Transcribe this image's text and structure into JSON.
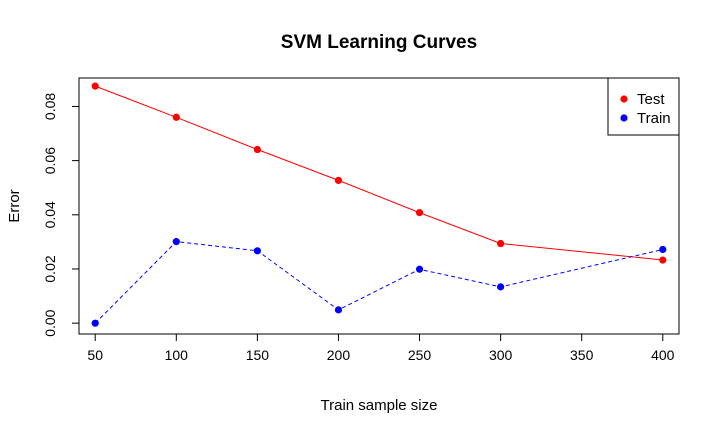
{
  "chart_data": {
    "type": "line",
    "title": "SVM Learning Curves",
    "xlabel": "Train sample size",
    "ylabel": "Error",
    "xlim": [
      40,
      410
    ],
    "ylim": [
      -0.004,
      0.0905
    ],
    "xticks": [
      50,
      100,
      150,
      200,
      250,
      300,
      350,
      400
    ],
    "yticks": [
      0.0,
      0.02,
      0.04,
      0.06,
      0.08
    ],
    "ytick_labels": [
      "0.00",
      "0.02",
      "0.04",
      "0.06",
      "0.08"
    ],
    "x": [
      50,
      100,
      150,
      200,
      250,
      300,
      400
    ],
    "series": [
      {
        "name": "Test",
        "color": "#ff0000",
        "line_style": "solid",
        "values": [
          0.0875,
          0.076,
          0.0641,
          0.0527,
          0.0408,
          0.0294,
          0.0233
        ]
      },
      {
        "name": "Train",
        "color": "#0000ff",
        "line_style": "dashed",
        "values": [
          0.0,
          0.0301,
          0.0267,
          0.0049,
          0.0199,
          0.0134,
          0.0272
        ]
      }
    ],
    "legend_position": "top-right",
    "grid": false
  }
}
